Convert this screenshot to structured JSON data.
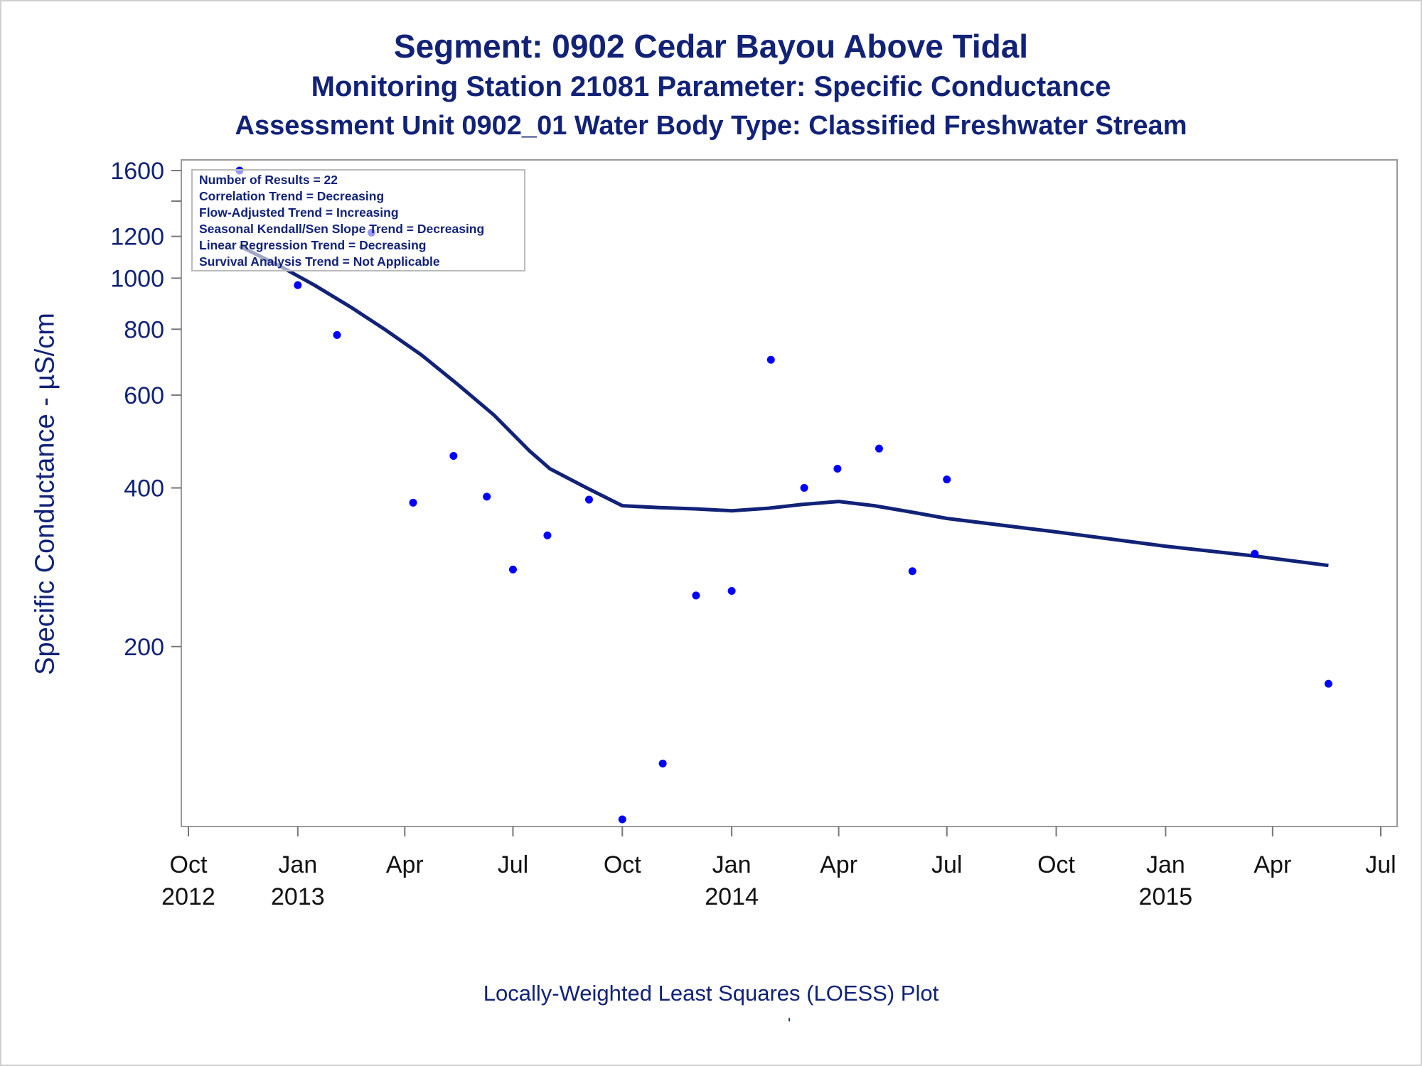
{
  "titles": {
    "line1": "Segment: 0902  Cedar Bayou Above Tidal",
    "line2": "Monitoring Station 21081 Parameter: Specific Conductance",
    "line3": "Assessment Unit 0902_01   Water Body Type: Classified Freshwater Stream"
  },
  "footnote": "Locally-Weighted Least Squares (LOESS) Plot",
  "footnote_mark": "'",
  "stats_box": {
    "lines": [
      "Number of Results = 22",
      "Correlation Trend = Decreasing",
      "Flow-Adjusted Trend = Increasing",
      "Seasonal Kendall/Sen Slope Trend = Decreasing",
      "Linear Regression Trend = Decreasing",
      "Survival Analysis Trend = Not Applicable"
    ],
    "placement": "top-left"
  },
  "colors": {
    "title": "#112277",
    "points": "#0000ff",
    "line": "#112277",
    "axis": "#999999"
  },
  "chart_data": {
    "type": "scatter",
    "ylabel": "Specific Conductance -  µS/cm",
    "y_scale": "log",
    "ylim": [
      94,
      1600
    ],
    "xlim": [
      "2012-10-01",
      "2015-07-01"
    ],
    "y_ticks": [
      200,
      400,
      600,
      800,
      1000,
      1200,
      1600
    ],
    "y_minor_ticks": [
      1400
    ],
    "x_ticks": [
      {
        "date": "2012-10-01",
        "label1": "Oct",
        "label2": "2012"
      },
      {
        "date": "2013-01-01",
        "label1": "Jan",
        "label2": "2013"
      },
      {
        "date": "2013-04-01",
        "label1": "Apr",
        "label2": ""
      },
      {
        "date": "2013-07-01",
        "label1": "Jul",
        "label2": ""
      },
      {
        "date": "2013-10-01",
        "label1": "Oct",
        "label2": ""
      },
      {
        "date": "2014-01-01",
        "label1": "Jan",
        "label2": "2014"
      },
      {
        "date": "2014-04-01",
        "label1": "Apr",
        "label2": ""
      },
      {
        "date": "2014-07-01",
        "label1": "Jul",
        "label2": ""
      },
      {
        "date": "2014-10-01",
        "label1": "Oct",
        "label2": ""
      },
      {
        "date": "2015-01-01",
        "label1": "Jan",
        "label2": "2015"
      },
      {
        "date": "2015-04-01",
        "label1": "Apr",
        "label2": ""
      },
      {
        "date": "2015-07-01",
        "label1": "Jul",
        "label2": ""
      }
    ],
    "series": [
      {
        "type": "scatter",
        "points": [
          {
            "x": "2012-11-13",
            "y": 1600
          },
          {
            "x": "2013-01-01",
            "y": 970
          },
          {
            "x": "2013-02-03",
            "y": 780
          },
          {
            "x": "2013-03-04",
            "y": 1220
          },
          {
            "x": "2013-04-08",
            "y": 375
          },
          {
            "x": "2013-05-12",
            "y": 460
          },
          {
            "x": "2013-06-09",
            "y": 385
          },
          {
            "x": "2013-07-01",
            "y": 280
          },
          {
            "x": "2013-07-30",
            "y": 325
          },
          {
            "x": "2013-09-03",
            "y": 380
          },
          {
            "x": "2013-10-01",
            "y": 94
          },
          {
            "x": "2013-11-04",
            "y": 120
          },
          {
            "x": "2013-12-02",
            "y": 250
          },
          {
            "x": "2014-01-01",
            "y": 255
          },
          {
            "x": "2014-02-03",
            "y": 700
          },
          {
            "x": "2014-03-03",
            "y": 400
          },
          {
            "x": "2014-03-31",
            "y": 435
          },
          {
            "x": "2014-05-05",
            "y": 475
          },
          {
            "x": "2014-06-02",
            "y": 278
          },
          {
            "x": "2014-07-01",
            "y": 415
          },
          {
            "x": "2015-03-17",
            "y": 300
          },
          {
            "x": "2015-05-18",
            "y": 170
          }
        ]
      },
      {
        "type": "line",
        "points": [
          {
            "x": "2012-11-13",
            "y": 1150
          },
          {
            "x": "2012-12-15",
            "y": 1060
          },
          {
            "x": "2013-01-15",
            "y": 970
          },
          {
            "x": "2013-02-15",
            "y": 880
          },
          {
            "x": "2013-03-15",
            "y": 800
          },
          {
            "x": "2013-04-15",
            "y": 715
          },
          {
            "x": "2013-05-15",
            "y": 630
          },
          {
            "x": "2013-06-15",
            "y": 550
          },
          {
            "x": "2013-07-15",
            "y": 470
          },
          {
            "x": "2013-08-01",
            "y": 435
          },
          {
            "x": "2013-09-01",
            "y": 400
          },
          {
            "x": "2013-10-01",
            "y": 370
          },
          {
            "x": "2013-11-01",
            "y": 367
          },
          {
            "x": "2013-12-01",
            "y": 365
          },
          {
            "x": "2014-01-01",
            "y": 362
          },
          {
            "x": "2014-02-01",
            "y": 366
          },
          {
            "x": "2014-03-01",
            "y": 372
          },
          {
            "x": "2014-04-01",
            "y": 377
          },
          {
            "x": "2014-05-01",
            "y": 370
          },
          {
            "x": "2014-06-01",
            "y": 360
          },
          {
            "x": "2014-07-01",
            "y": 350
          },
          {
            "x": "2014-10-01",
            "y": 330
          },
          {
            "x": "2015-01-01",
            "y": 310
          },
          {
            "x": "2015-03-17",
            "y": 297
          },
          {
            "x": "2015-05-18",
            "y": 285
          }
        ]
      }
    ]
  }
}
